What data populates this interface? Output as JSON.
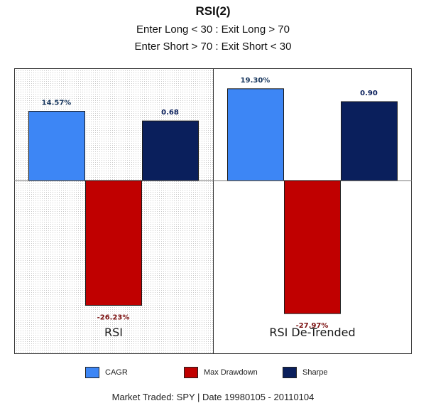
{
  "title": "RSI(2)",
  "subtitle_1": "Enter Long < 30 : Exit Long > 70",
  "subtitle_2": "Enter Short > 70 : Exit Short < 30",
  "footer": "Market Traded: SPY | Date 19980105 - 20110104",
  "colors": {
    "cagr": "#3d86f5",
    "max_drawdown": "#c00000",
    "sharpe": "#0a1f5c",
    "cagr_label": "#17365d",
    "dd_label": "#7b1010",
    "sharpe_label": "#0a1f5c"
  },
  "chart_data": {
    "type": "bar",
    "categories": [
      "RSI",
      "RSI De-Trended"
    ],
    "series": [
      {
        "name": "CAGR",
        "values": [
          14.57,
          19.3
        ],
        "labels": [
          "14.57%",
          "19.30%"
        ]
      },
      {
        "name": "Max Drawdown",
        "values": [
          -26.23,
          -27.97
        ],
        "labels": [
          "-26.23%",
          "-27.97%"
        ]
      },
      {
        "name": "Sharpe",
        "values": [
          0.68,
          0.9
        ],
        "labels": [
          "0.68",
          "0.90"
        ]
      }
    ],
    "legend_position": "bottom",
    "grid": false
  }
}
